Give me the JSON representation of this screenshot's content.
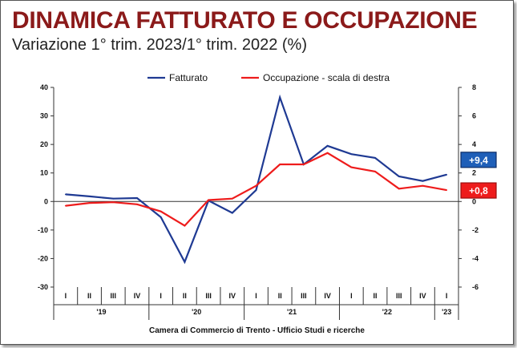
{
  "header": {
    "title": "DINAMICA FATTURATO E OCCUPAZIONE",
    "subtitle": "Variazione 1° trim. 2023/1° trim. 2022 (%)"
  },
  "footer": {
    "source": "Camera di Commercio di Trento - Ufficio Studi e ricerche"
  },
  "colors": {
    "fatturato": "#1f3a93",
    "occupazione": "#ee1c1c",
    "title": "#8b1a1a"
  },
  "chart_data": {
    "type": "line",
    "categories": [
      "I",
      "II",
      "III",
      "IV",
      "I",
      "II",
      "III",
      "IV",
      "I",
      "II",
      "III",
      "IV",
      "I",
      "II",
      "III",
      "IV",
      "I"
    ],
    "year_groups": [
      {
        "label": "'19",
        "span": 4
      },
      {
        "label": "'20",
        "span": 4
      },
      {
        "label": "'21",
        "span": 4
      },
      {
        "label": "'22",
        "span": 4
      },
      {
        "label": "'23",
        "span": 1
      }
    ],
    "series": [
      {
        "name": "Fatturato",
        "axis": "left",
        "values": [
          2.5,
          1.8,
          1.0,
          1.2,
          -5.5,
          -21.2,
          0.3,
          -4.0,
          4.0,
          36.5,
          13.0,
          19.5,
          16.6,
          15.3,
          8.8,
          7.2,
          9.4
        ]
      },
      {
        "name": "Occupazione - scala di destra",
        "axis": "right",
        "values": [
          -0.3,
          -0.1,
          -0.05,
          -0.2,
          -0.7,
          -1.7,
          0.1,
          0.2,
          1.1,
          2.6,
          2.6,
          3.4,
          2.4,
          2.1,
          0.9,
          1.1,
          0.8
        ]
      }
    ],
    "ylim_left": [
      -30,
      40
    ],
    "yticks_left": [
      -30,
      -20,
      -10,
      0,
      10,
      20,
      30,
      40
    ],
    "ylim_right": [
      -6,
      8
    ],
    "yticks_right": [
      -6,
      -4,
      -2,
      0,
      2,
      4,
      6,
      8
    ],
    "callouts": [
      {
        "series": "Fatturato",
        "label": "+9,4"
      },
      {
        "series": "Occupazione - scala di destra",
        "label": "+0,8"
      }
    ],
    "grid": false,
    "legend": "top-center"
  }
}
